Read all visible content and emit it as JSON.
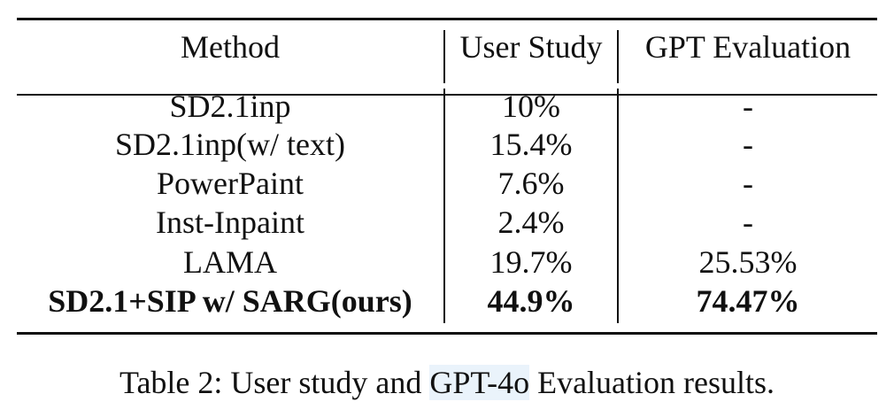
{
  "table": {
    "headers": {
      "method": "Method",
      "user_study": "User Study",
      "gpt_evaluation": "GPT Evaluation"
    },
    "rows": [
      {
        "method": "SD2.1inp",
        "user_study": "10%",
        "gpt_evaluation": "-",
        "bold": false
      },
      {
        "method": "SD2.1inp(w/ text)",
        "user_study": "15.4%",
        "gpt_evaluation": "-",
        "bold": false
      },
      {
        "method": "PowerPaint",
        "user_study": "7.6%",
        "gpt_evaluation": "-",
        "bold": false
      },
      {
        "method": "Inst-Inpaint",
        "user_study": "2.4%",
        "gpt_evaluation": "-",
        "bold": false
      },
      {
        "method": "LAMA",
        "user_study": "19.7%",
        "gpt_evaluation": "25.53%",
        "bold": false
      },
      {
        "method": "SD2.1+SIP w/ SARG(ours)",
        "user_study": "44.9%",
        "gpt_evaluation": "74.47%",
        "bold": true
      }
    ]
  },
  "caption": {
    "prefix": "Table 2: User study and ",
    "highlight": "GPT-4o",
    "suffix": " Evaluation results."
  },
  "colors": {
    "rule": "#111111",
    "highlight": "#eaf3fb"
  }
}
